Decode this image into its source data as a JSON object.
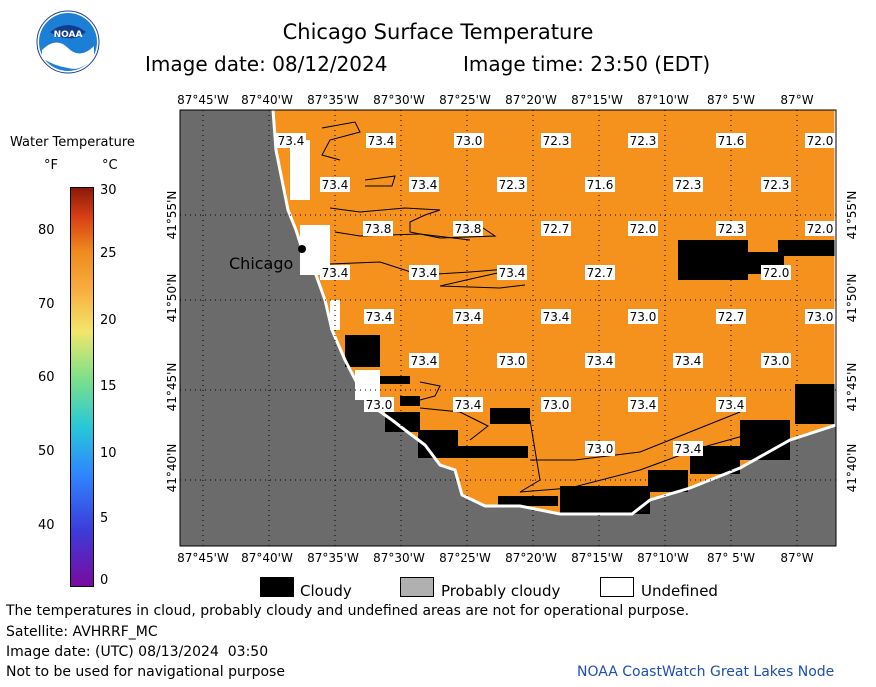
{
  "header": {
    "title": "Chicago Surface Temperature",
    "image_date": "Image date: 08/12/2024",
    "image_time": "Image time: 23:50 (EDT)"
  },
  "logo": {
    "text": "NOAA"
  },
  "colorbar": {
    "title": "Water Temperature",
    "unit_f": "°F",
    "unit_c": "°C",
    "f_ticks": [
      "40",
      "50",
      "60",
      "70",
      "80"
    ],
    "c_ticks": [
      "0",
      "5",
      "10",
      "15",
      "20",
      "25",
      "30"
    ]
  },
  "map": {
    "lon_labels": [
      "87°45'W",
      "87°40'W",
      "87°35'W",
      "87°30'W",
      "87°25'W",
      "87°20'W",
      "87°15'W",
      "87°10'W",
      "87° 5'W",
      "87°W"
    ],
    "lat_labels": [
      "41°55'N",
      "41°50'N",
      "41°45'N",
      "41°40'N"
    ],
    "city_label": "Chicago",
    "colors": {
      "water": "#f5921e",
      "land": "#6b6b6b",
      "cloud": "#000000",
      "undefined": "#ffffff",
      "grid": "#000000"
    },
    "temps": [
      "73.4",
      "73.4",
      "73.0",
      "72.3",
      "72.3",
      "71.6",
      "72.0",
      "73.4",
      "73.4",
      "72.3",
      "71.6",
      "72.3",
      "72.3",
      "73.8",
      "73.8",
      "72.7",
      "72.0",
      "72.3",
      "72.0",
      "73.4",
      "73.4",
      "73.4",
      "72.7",
      "72.0",
      "73.4",
      "73.4",
      "73.4",
      "73.0",
      "72.7",
      "73.0",
      "73.4",
      "73.0",
      "73.4",
      "73.4",
      "73.0",
      "73.0",
      "73.4",
      "73.0",
      "73.4",
      "73.4",
      "73.0",
      "73.4"
    ]
  },
  "legend": {
    "cloudy": "Cloudy",
    "probably_cloudy": "Probably cloudy",
    "undefined": "Undefined"
  },
  "footer": {
    "note": "The temperatures in cloud, probably cloudy and undefined areas are not for operational purpose.",
    "satellite": "Satellite: AVHRRF_MC",
    "utc_date": "Image date: (UTC) 08/13/2024  03:50",
    "nav_warning": "Not to be used for navigational purpose",
    "credit": "NOAA CoastWatch Great Lakes Node"
  }
}
